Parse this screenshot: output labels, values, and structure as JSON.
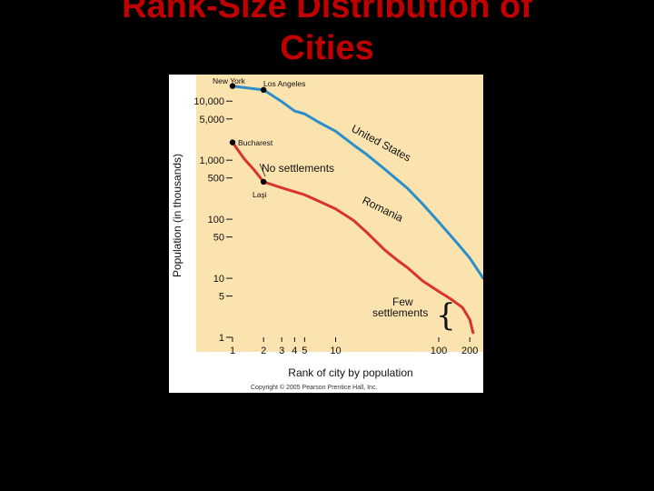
{
  "slide": {
    "title_line1": "Rank-Size Distribution of",
    "title_line2": "Cities",
    "title_color": "#c00000"
  },
  "copyright": "Copyright © 2005 Pearson Prentice Hall, Inc.",
  "colors": {
    "plot_bg": "#fbe3b0",
    "us_line": "#2a8fc8",
    "romania_line": "#d9332b",
    "marker": "#000000"
  },
  "chart_data": {
    "type": "line",
    "xlabel": "Rank of city by population",
    "ylabel": "Population (in thousands)",
    "x_scale": "log",
    "y_scale": "log",
    "xlim": [
      1,
      270
    ],
    "ylim": [
      1,
      22000
    ],
    "x_ticks": [
      1,
      2,
      3,
      4,
      5,
      10,
      100,
      200
    ],
    "x_tick_labels": [
      "1",
      "2",
      "3",
      "4",
      "5",
      "10",
      "100",
      "200"
    ],
    "y_ticks": [
      1,
      5,
      10,
      50,
      100,
      500,
      1000,
      5000,
      10000
    ],
    "y_tick_labels": [
      "1",
      "5",
      "10",
      "50",
      "100",
      "500",
      "1,000",
      "5,000",
      "10,000"
    ],
    "series": [
      {
        "name": "United States",
        "color": "#2a8fc8",
        "x": [
          1,
          2,
          3,
          4,
          5,
          7,
          10,
          15,
          20,
          30,
          50,
          70,
          100,
          150,
          200,
          270
        ],
        "y": [
          18000,
          15500,
          9800,
          6800,
          6100,
          4300,
          3100,
          1800,
          1250,
          700,
          330,
          180,
          90,
          40,
          22,
          10
        ]
      },
      {
        "name": "Romania",
        "color": "#d9332b",
        "x": [
          1,
          1.3,
          1.6,
          2,
          3,
          5,
          7,
          10,
          15,
          20,
          30,
          40,
          50,
          70,
          100,
          130,
          170,
          200,
          215
        ],
        "y": [
          2000,
          1050,
          700,
          430,
          340,
          260,
          200,
          150,
          95,
          60,
          30,
          20,
          15,
          9,
          6,
          4.5,
          3.2,
          2,
          1.2
        ]
      }
    ],
    "annotations": {
      "new_york": {
        "label": "New York",
        "x": 1,
        "y": 18000
      },
      "los_angeles": {
        "label": "Los Angeles",
        "x": 2,
        "y": 15500
      },
      "bucharest": {
        "label": "Bucharest",
        "x": 1,
        "y": 2000
      },
      "iasi": {
        "label": "Laşi",
        "x": 2,
        "y": 430
      },
      "no_settlements": "No settlements",
      "few_settlements_line1": "Few",
      "few_settlements_line2": "settlements",
      "brace": "{",
      "us_label": "United States",
      "romania_label": "Romania"
    }
  }
}
